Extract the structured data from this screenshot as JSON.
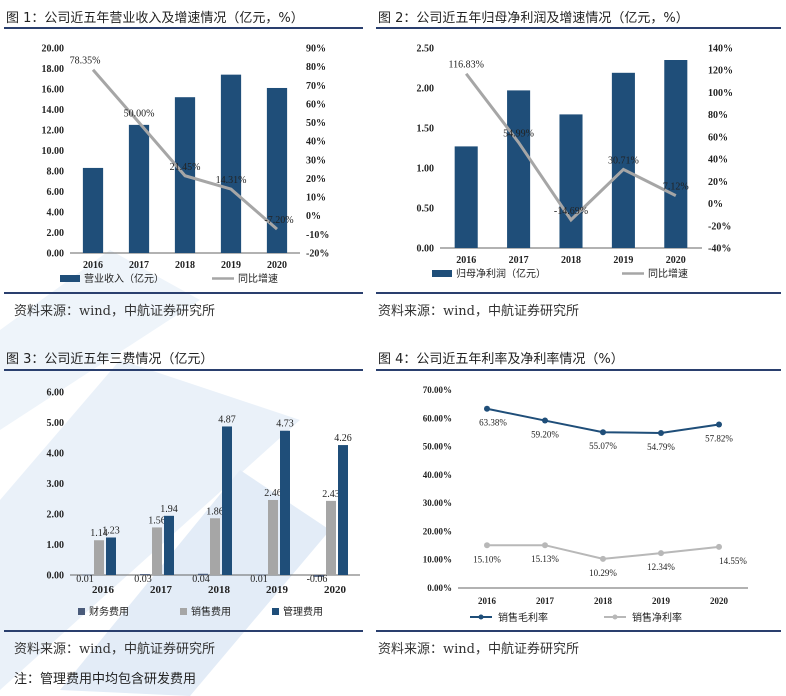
{
  "source_text": "资料来源：wind，中航证券研究所",
  "footnote": "注：管理费用中均包含研发费用",
  "colors": {
    "navy": "#1f4e79",
    "gray": "#a6a6a6",
    "rule": "#2a3f6e",
    "watermark": "#e6eef8"
  },
  "chart_data": [
    {
      "type": "bar",
      "title": "图 1：公司近五年营业收入及增速情况（亿元，%）",
      "categories": [
        "2016",
        "2017",
        "2018",
        "2019",
        "2020"
      ],
      "series": [
        {
          "name": "营业收入（亿元）",
          "kind": "bar",
          "axis": "left",
          "values": [
            8.3,
            12.5,
            15.2,
            17.4,
            16.1
          ]
        },
        {
          "name": "同比增速",
          "kind": "line",
          "axis": "right",
          "values": [
            78.35,
            50.0,
            21.45,
            14.31,
            -7.2
          ],
          "labels": [
            "78.35%",
            "50.00%",
            "21.45%",
            "14.31%",
            "-7.20%"
          ]
        }
      ],
      "y_left": {
        "min": 0,
        "max": 20,
        "step": 2,
        "ticks": [
          "0.00",
          "2.00",
          "4.00",
          "6.00",
          "8.00",
          "10.00",
          "12.00",
          "14.00",
          "16.00",
          "18.00",
          "20.00"
        ]
      },
      "y_right": {
        "min": -20,
        "max": 90,
        "step": 10,
        "ticks": [
          "-20%",
          "-10%",
          "0%",
          "10%",
          "20%",
          "30%",
          "40%",
          "50%",
          "60%",
          "70%",
          "80%",
          "90%"
        ]
      },
      "legend": "bottom"
    },
    {
      "type": "bar",
      "title": "图 2：公司近五年归母净利润及增速情况（亿元，%）",
      "categories": [
        "2016",
        "2017",
        "2018",
        "2019",
        "2020"
      ],
      "series": [
        {
          "name": "归母净利润（亿元）",
          "kind": "bar",
          "axis": "left",
          "values": [
            1.27,
            1.97,
            1.67,
            2.19,
            2.35
          ]
        },
        {
          "name": "同比增速",
          "kind": "line",
          "axis": "right",
          "values": [
            116.83,
            54.99,
            -14.69,
            30.71,
            7.12
          ],
          "labels": [
            "116.83%",
            "54.99%",
            "-14.69%",
            "30.71%",
            "7.12%"
          ]
        }
      ],
      "y_left": {
        "min": 0,
        "max": 2.5,
        "step": 0.5,
        "ticks": [
          "0.00",
          "0.50",
          "1.00",
          "1.50",
          "2.00",
          "2.50"
        ]
      },
      "y_right": {
        "min": -40,
        "max": 140,
        "step": 20,
        "ticks": [
          "-40%",
          "-20%",
          "0%",
          "20%",
          "40%",
          "60%",
          "80%",
          "100%",
          "120%",
          "140%"
        ]
      },
      "legend": "bottom"
    },
    {
      "type": "bar",
      "title": "图 3：公司近五年三费情况（亿元）",
      "categories": [
        "2016",
        "2017",
        "2018",
        "2019",
        "2020"
      ],
      "series": [
        {
          "name": "财务费用",
          "values": [
            0.01,
            0.03,
            0.04,
            0.01,
            -0.06
          ],
          "labels": [
            "0.01",
            "0.03",
            "0.04",
            "0.01",
            "-0.06"
          ]
        },
        {
          "name": "销售费用",
          "values": [
            1.14,
            1.56,
            1.86,
            2.46,
            2.43
          ],
          "labels": [
            "1.14",
            "1.56",
            "1.86",
            "2.46",
            "2.43"
          ]
        },
        {
          "name": "管理费用",
          "values": [
            1.23,
            1.94,
            4.87,
            4.73,
            4.26
          ],
          "labels": [
            "1.23",
            "1.94",
            "4.87",
            "4.73",
            "4.26"
          ]
        }
      ],
      "y_left": {
        "min": 0,
        "max": 6,
        "step": 1,
        "ticks": [
          "0.00",
          "1.00",
          "2.00",
          "3.00",
          "4.00",
          "5.00",
          "6.00"
        ]
      },
      "legend": "bottom"
    },
    {
      "type": "line",
      "title": "图 4：公司近五年利率及净利率情况（%）",
      "categories": [
        "2016",
        "2017",
        "2018",
        "2019",
        "2020"
      ],
      "series": [
        {
          "name": "销售毛利率",
          "values": [
            63.38,
            59.2,
            55.07,
            54.79,
            57.82
          ],
          "labels": [
            "63.38%",
            "59.20%",
            "55.07%",
            "54.79%",
            "57.82%"
          ]
        },
        {
          "name": "销售净利率",
          "values": [
            15.1,
            15.13,
            10.29,
            12.34,
            14.55
          ],
          "labels": [
            "15.10%",
            "15.13%",
            "10.29%",
            "12.34%",
            "14.55%"
          ]
        }
      ],
      "y_left": {
        "min": 0,
        "max": 70,
        "step": 10,
        "ticks": [
          "0.00%",
          "10.00%",
          "20.00%",
          "30.00%",
          "40.00%",
          "50.00%",
          "60.00%",
          "70.00%"
        ]
      },
      "legend": "bottom"
    }
  ]
}
